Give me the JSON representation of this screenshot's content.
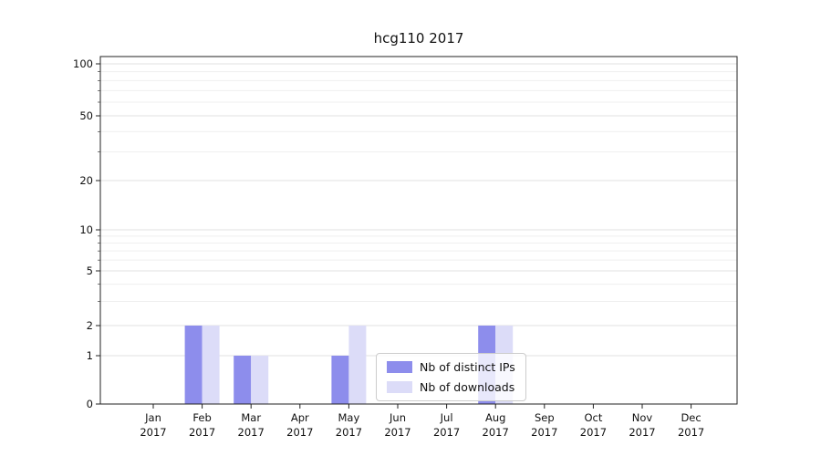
{
  "title": "hcg110 2017",
  "chart_data": {
    "type": "bar",
    "categories": [
      "Jan",
      "Feb",
      "Mar",
      "Apr",
      "May",
      "Jun",
      "Jul",
      "Aug",
      "Sep",
      "Oct",
      "Nov",
      "Dec"
    ],
    "x_year": "2017",
    "series": [
      {
        "name": "Nb of distinct IPs",
        "color": "#8d8dec",
        "values": [
          0,
          2,
          1,
          0,
          1,
          0,
          0,
          2,
          0,
          0,
          0,
          0
        ]
      },
      {
        "name": "Nb of downloads",
        "color": "#dcdcf8",
        "values": [
          0,
          2,
          1,
          0,
          2,
          0,
          0,
          2,
          0,
          0,
          0,
          0
        ]
      }
    ],
    "y_ticks": [
      0,
      1,
      2,
      5,
      10,
      20,
      50,
      100
    ],
    "y_minor_ticks": [
      3,
      4,
      6,
      7,
      8,
      9,
      30,
      40,
      60,
      70,
      80,
      90
    ],
    "y_scale": "symlog",
    "ylim": [
      0,
      110
    ],
    "grid": "horizontal",
    "legend_position": "lower center"
  }
}
